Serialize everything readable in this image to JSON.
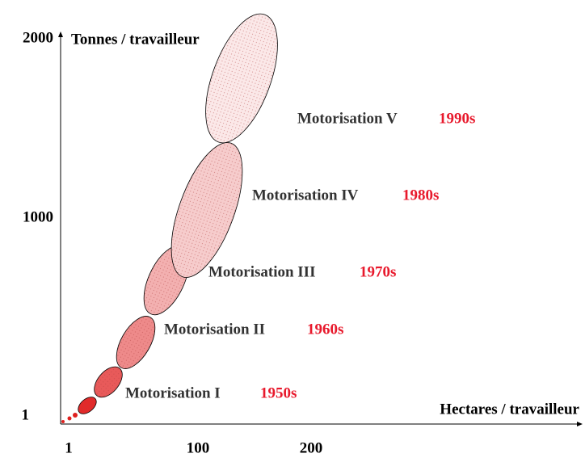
{
  "axes": {
    "y_title": "Tonnes / travailleur",
    "x_title": "Hectares / travailleur",
    "y_ticks": [
      "2000",
      "1000",
      "1"
    ],
    "x_ticks": [
      "1",
      "100",
      "200"
    ]
  },
  "regions": [
    {
      "label": "Motorisation I",
      "decade": "1950s"
    },
    {
      "label": "Motorisation II",
      "decade": "1960s"
    },
    {
      "label": "Motorisation III",
      "decade": "1970s"
    },
    {
      "label": "Motorisation IV",
      "decade": "1980s"
    },
    {
      "label": "Motorisation V",
      "decade": "1990s"
    }
  ]
}
